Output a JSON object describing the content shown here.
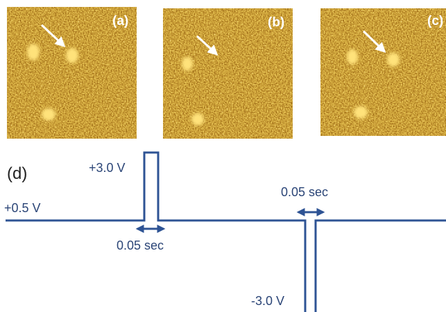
{
  "panels": [
    {
      "label": "(a)"
    },
    {
      "label": "(b)"
    },
    {
      "label": "(c)"
    }
  ],
  "pulse_diagram": {
    "label": "(d)",
    "high_voltage": "+3.0 V",
    "base_voltage": "+0.5 V",
    "low_voltage": "-3.0 V",
    "pulse_widths": [
      "0.05 sec",
      "0.05 sec"
    ]
  }
}
